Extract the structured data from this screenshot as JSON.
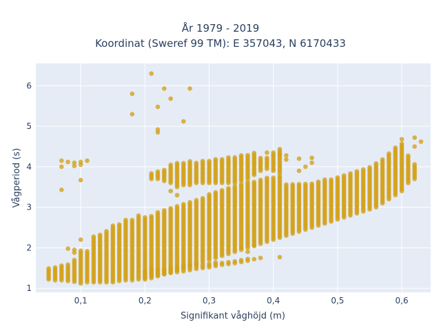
{
  "chart_data": {
    "type": "scatter",
    "title": "År 1979 - 2019",
    "subtitle": "Koordinat (Sweref 99 TM): E 357043, N 6170433",
    "xlabel": "Signifikant våghöjd (m)",
    "ylabel": "Vågperiod (s)",
    "xlim": [
      0.03,
      0.645
    ],
    "ylim": [
      0.9,
      6.55
    ],
    "x_ticks": [
      0.1,
      0.2,
      0.3,
      0.4,
      0.5,
      0.6
    ],
    "x_tick_labels": [
      "0,1",
      "0,2",
      "0,3",
      "0,4",
      "0,5",
      "0,6"
    ],
    "y_ticks": [
      1,
      2,
      3,
      4,
      5,
      6
    ],
    "y_tick_labels": [
      "1",
      "2",
      "3",
      "4",
      "5",
      "6"
    ],
    "grid": true,
    "legend": "none",
    "colors": {
      "marker": "#d4a017",
      "plot_bg": "#e5ecf6",
      "grid": "#ffffff",
      "text": "#2a3f5f"
    },
    "columns": [
      {
        "x": 0.05,
        "lo": 1.22,
        "hi": 1.5
      },
      {
        "x": 0.06,
        "lo": 1.2,
        "hi": 1.55
      },
      {
        "x": 0.07,
        "lo": 1.2,
        "hi": 1.58
      },
      {
        "x": 0.08,
        "lo": 1.18,
        "hi": 1.62
      },
      {
        "x": 0.09,
        "lo": 1.16,
        "hi": 1.7
      },
      {
        "x": 0.1,
        "lo": 1.12,
        "hi": 1.95
      },
      {
        "x": 0.11,
        "lo": 1.15,
        "hi": 1.92
      },
      {
        "x": 0.12,
        "lo": 1.15,
        "hi": 2.3
      },
      {
        "x": 0.13,
        "lo": 1.15,
        "hi": 2.35
      },
      {
        "x": 0.14,
        "lo": 1.15,
        "hi": 2.45
      },
      {
        "x": 0.15,
        "lo": 1.15,
        "hi": 2.55
      },
      {
        "x": 0.16,
        "lo": 1.18,
        "hi": 2.6
      },
      {
        "x": 0.17,
        "lo": 1.2,
        "hi": 2.7
      },
      {
        "x": 0.18,
        "lo": 1.2,
        "hi": 2.72
      },
      {
        "x": 0.19,
        "lo": 1.22,
        "hi": 2.8
      },
      {
        "x": 0.2,
        "lo": 1.22,
        "hi": 2.75
      },
      {
        "x": 0.21,
        "lo": 1.25,
        "hi": 2.8
      },
      {
        "x": 0.22,
        "lo": 1.3,
        "hi": 2.88
      },
      {
        "x": 0.23,
        "lo": 1.35,
        "hi": 2.95
      },
      {
        "x": 0.24,
        "lo": 1.4,
        "hi": 3.0
      },
      {
        "x": 0.25,
        "lo": 1.45,
        "hi": 3.05
      },
      {
        "x": 0.26,
        "lo": 1.5,
        "hi": 3.1
      },
      {
        "x": 0.27,
        "lo": 1.55,
        "hi": 3.15
      },
      {
        "x": 0.28,
        "lo": 1.6,
        "hi": 3.2
      },
      {
        "x": 0.29,
        "lo": 1.65,
        "hi": 3.25
      },
      {
        "x": 0.3,
        "lo": 1.7,
        "hi": 3.35
      },
      {
        "x": 0.31,
        "lo": 1.75,
        "hi": 3.4
      },
      {
        "x": 0.32,
        "lo": 1.8,
        "hi": 3.45
      },
      {
        "x": 0.33,
        "lo": 1.85,
        "hi": 3.5
      },
      {
        "x": 0.34,
        "lo": 1.9,
        "hi": 3.55
      },
      {
        "x": 0.35,
        "lo": 1.95,
        "hi": 3.6
      },
      {
        "x": 0.36,
        "lo": 2.0,
        "hi": 3.62
      },
      {
        "x": 0.37,
        "lo": 2.05,
        "hi": 3.65
      },
      {
        "x": 0.38,
        "lo": 2.1,
        "hi": 3.7
      },
      {
        "x": 0.39,
        "lo": 2.15,
        "hi": 3.75
      },
      {
        "x": 0.4,
        "lo": 2.2,
        "hi": 3.75
      },
      {
        "x": 0.41,
        "lo": 2.25,
        "hi": 3.78
      },
      {
        "x": 0.42,
        "lo": 2.3,
        "hi": 3.6
      },
      {
        "x": 0.43,
        "lo": 2.35,
        "hi": 3.6
      },
      {
        "x": 0.44,
        "lo": 2.4,
        "hi": 3.6
      },
      {
        "x": 0.45,
        "lo": 2.45,
        "hi": 3.6
      },
      {
        "x": 0.46,
        "lo": 2.5,
        "hi": 3.62
      },
      {
        "x": 0.47,
        "lo": 2.55,
        "hi": 3.65
      },
      {
        "x": 0.48,
        "lo": 2.6,
        "hi": 3.68
      },
      {
        "x": 0.49,
        "lo": 2.65,
        "hi": 3.7
      },
      {
        "x": 0.5,
        "lo": 2.7,
        "hi": 3.75
      },
      {
        "x": 0.51,
        "lo": 2.75,
        "hi": 3.82
      },
      {
        "x": 0.52,
        "lo": 2.8,
        "hi": 3.85
      },
      {
        "x": 0.53,
        "lo": 2.85,
        "hi": 3.9
      },
      {
        "x": 0.54,
        "lo": 2.9,
        "hi": 3.95
      },
      {
        "x": 0.55,
        "lo": 2.95,
        "hi": 4.0
      },
      {
        "x": 0.56,
        "lo": 3.0,
        "hi": 4.1
      },
      {
        "x": 0.57,
        "lo": 3.1,
        "hi": 4.2
      },
      {
        "x": 0.58,
        "lo": 3.2,
        "hi": 4.35
      },
      {
        "x": 0.59,
        "lo": 3.3,
        "hi": 4.5
      },
      {
        "x": 0.6,
        "lo": 3.4,
        "hi": 4.6
      },
      {
        "x": 0.61,
        "lo": 3.6,
        "hi": 4.3
      },
      {
        "x": 0.62,
        "lo": 3.7,
        "hi": 4.1
      }
    ],
    "upper_band": [
      {
        "x": 0.21,
        "lo": 3.7,
        "hi": 3.85
      },
      {
        "x": 0.22,
        "lo": 3.7,
        "hi": 3.9
      },
      {
        "x": 0.23,
        "lo": 3.65,
        "hi": 3.95
      },
      {
        "x": 0.24,
        "lo": 3.6,
        "hi": 4.05
      },
      {
        "x": 0.25,
        "lo": 3.55,
        "hi": 4.1
      },
      {
        "x": 0.26,
        "lo": 3.55,
        "hi": 4.1
      },
      {
        "x": 0.27,
        "lo": 3.55,
        "hi": 4.15
      },
      {
        "x": 0.28,
        "lo": 3.6,
        "hi": 4.1
      },
      {
        "x": 0.29,
        "lo": 3.6,
        "hi": 4.15
      },
      {
        "x": 0.3,
        "lo": 3.6,
        "hi": 4.15
      },
      {
        "x": 0.31,
        "lo": 3.6,
        "hi": 4.2
      },
      {
        "x": 0.32,
        "lo": 3.6,
        "hi": 4.2
      },
      {
        "x": 0.33,
        "lo": 3.6,
        "hi": 4.25
      },
      {
        "x": 0.34,
        "lo": 3.6,
        "hi": 4.25
      },
      {
        "x": 0.35,
        "lo": 3.65,
        "hi": 4.3
      },
      {
        "x": 0.36,
        "lo": 3.7,
        "hi": 4.3
      },
      {
        "x": 0.37,
        "lo": 3.8,
        "hi": 4.35
      },
      {
        "x": 0.38,
        "lo": 3.9,
        "hi": 4.25
      },
      {
        "x": 0.39,
        "lo": 3.95,
        "hi": 4.25
      },
      {
        "x": 0.4,
        "lo": 3.9,
        "hi": 4.35
      },
      {
        "x": 0.41,
        "lo": 3.85,
        "hi": 4.45
      }
    ],
    "lower_band": [
      {
        "x": 0.2,
        "lo": 1.25,
        "hi": 1.45
      },
      {
        "x": 0.21,
        "lo": 1.3,
        "hi": 1.5
      },
      {
        "x": 0.22,
        "lo": 1.33,
        "hi": 1.5
      },
      {
        "x": 0.23,
        "lo": 1.35,
        "hi": 1.52
      },
      {
        "x": 0.24,
        "lo": 1.38,
        "hi": 1.55
      },
      {
        "x": 0.25,
        "lo": 1.4,
        "hi": 1.55
      },
      {
        "x": 0.26,
        "lo": 1.42,
        "hi": 1.58
      },
      {
        "x": 0.27,
        "lo": 1.45,
        "hi": 1.6
      },
      {
        "x": 0.28,
        "lo": 1.48,
        "hi": 1.62
      },
      {
        "x": 0.29,
        "lo": 1.5,
        "hi": 1.63
      },
      {
        "x": 0.3,
        "lo": 1.52,
        "hi": 1.65
      },
      {
        "x": 0.31,
        "lo": 1.55,
        "hi": 1.65
      },
      {
        "x": 0.32,
        "lo": 1.58,
        "hi": 1.66
      },
      {
        "x": 0.33,
        "lo": 1.6,
        "hi": 1.68
      },
      {
        "x": 0.34,
        "lo": 1.62,
        "hi": 1.7
      },
      {
        "x": 0.35,
        "lo": 1.65,
        "hi": 1.72
      },
      {
        "x": 0.36,
        "lo": 1.68,
        "hi": 1.73
      }
    ],
    "outliers": [
      {
        "x": 0.21,
        "y": 6.3
      },
      {
        "x": 0.18,
        "y": 5.8
      },
      {
        "x": 0.23,
        "y": 5.93
      },
      {
        "x": 0.27,
        "y": 5.93
      },
      {
        "x": 0.24,
        "y": 5.68
      },
      {
        "x": 0.22,
        "y": 5.48
      },
      {
        "x": 0.18,
        "y": 5.3
      },
      {
        "x": 0.26,
        "y": 5.12
      },
      {
        "x": 0.22,
        "y": 4.92
      },
      {
        "x": 0.22,
        "y": 4.85
      },
      {
        "x": 0.07,
        "y": 4.15
      },
      {
        "x": 0.08,
        "y": 4.12
      },
      {
        "x": 0.09,
        "y": 4.1
      },
      {
        "x": 0.1,
        "y": 4.12
      },
      {
        "x": 0.11,
        "y": 4.15
      },
      {
        "x": 0.07,
        "y": 4.0
      },
      {
        "x": 0.09,
        "y": 4.02
      },
      {
        "x": 0.1,
        "y": 4.05
      },
      {
        "x": 0.07,
        "y": 3.43
      },
      {
        "x": 0.1,
        "y": 3.67
      },
      {
        "x": 0.1,
        "y": 2.2
      },
      {
        "x": 0.09,
        "y": 1.95
      },
      {
        "x": 0.08,
        "y": 1.98
      },
      {
        "x": 0.09,
        "y": 1.88
      },
      {
        "x": 0.38,
        "y": 1.75
      },
      {
        "x": 0.41,
        "y": 1.77
      },
      {
        "x": 0.37,
        "y": 1.72
      },
      {
        "x": 0.44,
        "y": 4.2
      },
      {
        "x": 0.46,
        "y": 4.22
      },
      {
        "x": 0.46,
        "y": 4.1
      },
      {
        "x": 0.45,
        "y": 4.0
      },
      {
        "x": 0.44,
        "y": 3.9
      },
      {
        "x": 0.39,
        "y": 4.35
      },
      {
        "x": 0.41,
        "y": 4.3
      },
      {
        "x": 0.42,
        "y": 4.28
      },
      {
        "x": 0.6,
        "y": 4.68
      },
      {
        "x": 0.62,
        "y": 4.72
      },
      {
        "x": 0.63,
        "y": 4.62
      },
      {
        "x": 0.62,
        "y": 4.5
      },
      {
        "x": 0.24,
        "y": 3.4
      },
      {
        "x": 0.25,
        "y": 3.3
      },
      {
        "x": 0.25,
        "y": 3.5
      },
      {
        "x": 0.42,
        "y": 4.18
      },
      {
        "x": 0.36,
        "y": 1.9
      },
      {
        "x": 0.37,
        "y": 2.05
      },
      {
        "x": 0.35,
        "y": 2.0
      }
    ]
  }
}
